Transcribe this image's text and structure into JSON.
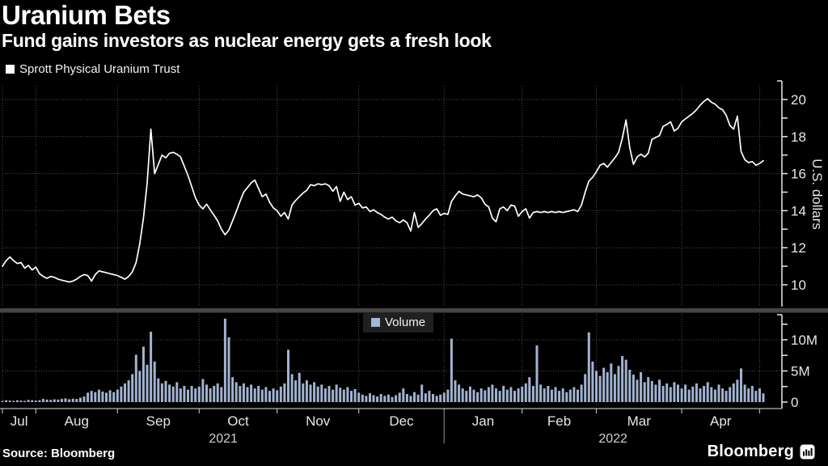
{
  "header": {
    "title": "Uranium Bets",
    "subtitle": "Fund gains investors as nuclear energy gets a fresh look"
  },
  "price_legend": {
    "label": "Sprott Physical Uranium Trust",
    "marker_color": "#ffffff"
  },
  "volume_legend": {
    "label": "Volume",
    "marker_color": "#a3b7d6"
  },
  "footer": {
    "source_label": "Source:  Bloomberg",
    "brand": "Bloomberg"
  },
  "colors": {
    "background": "#000000",
    "grid": "#4e4e46",
    "axis": "#e8e8e8",
    "x_axis_line": "#b5b5b5",
    "separator": "#454545",
    "line": "#ffffff",
    "bar": "#a2b3d1",
    "year_divider": "#5f5f5f"
  },
  "chart_data": {
    "type": "line+bar",
    "title": "Uranium Bets",
    "subtitle": "Fund gains investors as nuclear energy gets a fresh look",
    "x_axis": {
      "unit": "trading_day_index",
      "span": [
        0,
        210
      ],
      "month_ticks": {
        "days": [
          0,
          9,
          31,
          53,
          74,
          96,
          119,
          140,
          160,
          183,
          204
        ],
        "labels": [
          "Jul",
          "Aug",
          "Sep",
          "Oct",
          "Nov",
          "Dec",
          "Jan",
          "Feb",
          "Mar",
          "Apr"
        ]
      },
      "year_labels": [
        {
          "label": "2021",
          "start_day": 0,
          "end_day": 119
        },
        {
          "label": "2022",
          "start_day": 119,
          "end_day": 210
        }
      ],
      "year_divider_day": 119
    },
    "price_panel": {
      "type": "line",
      "series_name": "Sprott Physical Uranium Trust",
      "ylabel": "U.S. dollars",
      "ylim": [
        9.4,
        21.1
      ],
      "yticks_major": [
        10,
        12,
        14,
        16,
        18,
        20
      ],
      "yticks_minor": [
        11,
        13,
        15,
        17,
        19
      ],
      "values": [
        11.0,
        11.3,
        11.5,
        11.3,
        11.15,
        11.2,
        10.9,
        11.05,
        10.8,
        10.95,
        10.6,
        10.45,
        10.35,
        10.45,
        10.4,
        10.3,
        10.25,
        10.2,
        10.15,
        10.2,
        10.3,
        10.45,
        10.55,
        10.5,
        10.2,
        10.55,
        10.75,
        10.7,
        10.65,
        10.6,
        10.55,
        10.5,
        10.4,
        10.3,
        10.45,
        10.7,
        11.2,
        12.2,
        13.6,
        15.5,
        18.4,
        16.0,
        16.5,
        17.0,
        16.85,
        17.1,
        17.15,
        17.05,
        16.9,
        16.4,
        15.9,
        15.3,
        14.7,
        14.3,
        14.1,
        14.35,
        14.05,
        13.75,
        13.45,
        13.0,
        12.7,
        12.95,
        13.45,
        13.95,
        14.5,
        15.0,
        15.25,
        15.5,
        15.65,
        15.2,
        14.75,
        14.9,
        14.45,
        14.15,
        14.0,
        13.7,
        13.9,
        13.55,
        14.3,
        14.55,
        14.75,
        14.95,
        15.1,
        15.4,
        15.35,
        15.45,
        15.4,
        15.45,
        15.35,
        15.05,
        15.3,
        14.5,
        15.0,
        14.6,
        14.75,
        14.3,
        14.4,
        14.15,
        14.2,
        13.95,
        14.05,
        13.9,
        13.8,
        13.65,
        13.55,
        13.65,
        13.45,
        13.35,
        13.5,
        13.35,
        12.9,
        13.9,
        13.1,
        13.3,
        13.55,
        13.75,
        14.0,
        14.1,
        13.75,
        13.85,
        13.8,
        14.5,
        14.8,
        15.05,
        14.9,
        14.85,
        14.8,
        14.75,
        14.85,
        14.7,
        14.35,
        14.2,
        13.6,
        13.4,
        14.1,
        14.2,
        14.0,
        14.3,
        14.25,
        13.7,
        13.95,
        14.1,
        13.6,
        13.9,
        13.95,
        13.9,
        13.95,
        13.9,
        13.95,
        13.9,
        13.95,
        13.9,
        13.95,
        14.0,
        14.05,
        13.95,
        14.3,
        15.0,
        15.6,
        15.8,
        16.1,
        16.45,
        16.55,
        16.35,
        16.6,
        16.85,
        17.15,
        17.9,
        18.9,
        17.4,
        16.5,
        16.9,
        17.05,
        16.9,
        17.1,
        17.85,
        17.95,
        18.05,
        18.55,
        18.65,
        18.8,
        18.3,
        18.45,
        18.8,
        18.95,
        19.1,
        19.25,
        19.45,
        19.7,
        19.9,
        20.05,
        19.85,
        19.75,
        19.55,
        19.45,
        19.15,
        18.6,
        18.4,
        19.1,
        17.2,
        16.75,
        16.6,
        16.65,
        16.45,
        16.55,
        16.7
      ]
    },
    "volume_panel": {
      "type": "bar",
      "series_name": "Volume",
      "unit": "millions of shares",
      "ylim": [
        0,
        14
      ],
      "yticks": [
        {
          "v": 0,
          "label": "0"
        },
        {
          "v": 5,
          "label": "5M"
        },
        {
          "v": 10,
          "label": "10M"
        }
      ],
      "yticks_minor": [
        2.5,
        7.5,
        12.5
      ],
      "values": [
        0.2,
        0.3,
        0.25,
        0.2,
        0.3,
        0.25,
        0.2,
        0.35,
        0.3,
        0.25,
        0.3,
        0.5,
        0.4,
        0.35,
        0.45,
        0.4,
        0.5,
        0.6,
        0.45,
        0.55,
        0.5,
        0.7,
        0.9,
        1.5,
        1.8,
        1.6,
        2.0,
        1.7,
        1.5,
        1.9,
        1.6,
        2.0,
        2.5,
        3.0,
        3.5,
        4.5,
        7.6,
        5.0,
        8.9,
        6.0,
        11.3,
        6.5,
        3.8,
        3.0,
        3.4,
        2.8,
        2.5,
        3.2,
        2.2,
        2.6,
        2.0,
        2.6,
        2.2,
        2.5,
        3.7,
        2.8,
        2.2,
        2.6,
        3.0,
        2.4,
        13.4,
        10.4,
        4.0,
        3.2,
        2.6,
        3.0,
        2.4,
        2.8,
        2.2,
        2.6,
        2.0,
        2.4,
        1.8,
        2.2,
        1.9,
        2.5,
        3.0,
        8.4,
        4.5,
        3.5,
        4.7,
        3.0,
        3.5,
        2.8,
        3.2,
        2.5,
        2.8,
        2.2,
        2.6,
        2.0,
        2.8,
        2.3,
        2.0,
        2.4,
        1.8,
        2.1,
        1.5,
        1.2,
        1.0,
        1.4,
        1.1,
        0.9,
        1.3,
        1.0,
        1.2,
        0.8,
        1.1,
        1.5,
        2.2,
        1.3,
        1.0,
        1.6,
        1.2,
        2.8,
        1.4,
        1.8,
        1.3,
        1.0,
        1.2,
        1.5,
        2.0,
        10.2,
        3.5,
        2.8,
        2.2,
        1.8,
        2.5,
        2.0,
        1.6,
        2.2,
        1.9,
        2.4,
        2.8,
        2.2,
        1.8,
        2.6,
        2.0,
        2.4,
        1.8,
        2.2,
        2.5,
        3.0,
        4.0,
        2.6,
        9.1,
        2.8,
        2.2,
        2.6,
        2.0,
        2.4,
        1.8,
        2.2,
        1.6,
        2.0,
        2.4,
        2.0,
        2.8,
        4.5,
        11.2,
        6.5,
        5.0,
        4.2,
        5.5,
        4.8,
        6.2,
        4.5,
        5.8,
        7.4,
        6.8,
        5.2,
        4.4,
        3.6,
        4.8,
        3.2,
        4.0,
        3.4,
        2.8,
        3.6,
        2.6,
        3.0,
        2.4,
        3.2,
        2.8,
        2.2,
        2.8,
        2.0,
        2.5,
        3.0,
        2.2,
        2.6,
        3.2,
        2.4,
        2.0,
        2.8,
        2.2,
        1.8,
        2.4,
        3.0,
        3.6,
        5.4,
        2.8,
        2.2,
        2.6,
        1.8,
        2.2,
        1.4
      ]
    }
  }
}
